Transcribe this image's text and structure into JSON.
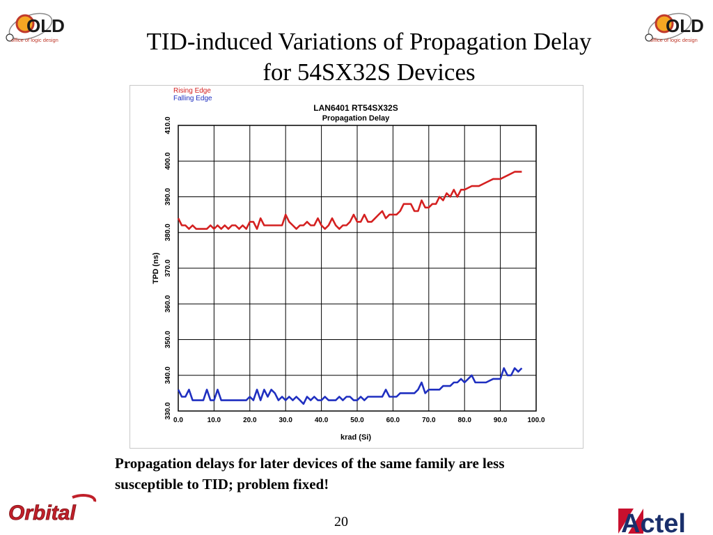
{
  "slide": {
    "title_line1": "TID-induced Variations of Propagation Delay",
    "title_line2": "for 54SX32S Devices",
    "caption_line1": "Propagation delays for later devices of the same family are less",
    "caption_line2": "susceptible to TID; problem fixed!",
    "page_number": "20"
  },
  "logos": {
    "old_text": "OLD",
    "old_subtext": "office of logic design",
    "orbital_text": "Orbital",
    "actel_text": "Actel"
  },
  "colors": {
    "rising": "#d42020",
    "falling": "#1f2fc0",
    "grid": "#000000"
  },
  "chart_data": {
    "type": "line",
    "title": "LAN6401 RT54SX32S",
    "subtitle": "Propagation Delay",
    "xlabel": "krad (Si)",
    "ylabel": "TPD (ns)",
    "xlim": [
      0,
      100
    ],
    "ylim": [
      330,
      410
    ],
    "xticks": [
      "0.0",
      "10.0",
      "20.0",
      "30.0",
      "40.0",
      "50.0",
      "60.0",
      "70.0",
      "80.0",
      "90.0",
      "100.0"
    ],
    "yticks": [
      "330.0",
      "340.0",
      "350.0",
      "360.0",
      "370.0",
      "380.0",
      "390.0",
      "400.0",
      "410.0"
    ],
    "grid": true,
    "legend_position": "top-left",
    "series": [
      {
        "name": "Rising Edge",
        "x": [
          0,
          1,
          2,
          3,
          4,
          5,
          6,
          7,
          8,
          9,
          10,
          11,
          12,
          13,
          14,
          15,
          16,
          17,
          18,
          19,
          20,
          21,
          22,
          23,
          24,
          25,
          26,
          27,
          28,
          29,
          30,
          31,
          32,
          33,
          34,
          35,
          36,
          37,
          38,
          39,
          40,
          41,
          42,
          43,
          44,
          45,
          46,
          47,
          48,
          49,
          50,
          51,
          52,
          53,
          54,
          55,
          56,
          57,
          58,
          59,
          60,
          61,
          62,
          63,
          64,
          65,
          66,
          67,
          68,
          69,
          70,
          71,
          72,
          73,
          74,
          75,
          76,
          77,
          78,
          79,
          80,
          82,
          84,
          86,
          88,
          90,
          92,
          94,
          96
        ],
        "values": [
          384,
          382,
          382,
          381,
          382,
          381,
          381,
          381,
          381,
          382,
          381,
          382,
          381,
          382,
          381,
          382,
          382,
          381,
          382,
          381,
          383,
          383,
          381,
          384,
          382,
          382,
          382,
          382,
          382,
          382,
          385,
          383,
          382,
          381,
          382,
          382,
          383,
          382,
          382,
          384,
          382,
          381,
          382,
          384,
          382,
          381,
          382,
          382,
          383,
          385,
          383,
          383,
          385,
          383,
          383,
          384,
          385,
          386,
          384,
          385,
          385,
          385,
          386,
          388,
          388,
          388,
          386,
          386,
          389,
          387,
          387,
          388,
          388,
          390,
          389,
          391,
          390,
          392,
          390,
          392,
          392,
          393,
          393,
          394,
          395,
          395,
          396,
          397,
          397
        ]
      },
      {
        "name": "Falling Edge",
        "x": [
          0,
          1,
          2,
          3,
          4,
          5,
          6,
          7,
          8,
          9,
          10,
          11,
          12,
          13,
          14,
          15,
          16,
          17,
          18,
          19,
          20,
          21,
          22,
          23,
          24,
          25,
          26,
          27,
          28,
          29,
          30,
          31,
          32,
          33,
          34,
          35,
          36,
          37,
          38,
          39,
          40,
          41,
          42,
          43,
          44,
          45,
          46,
          47,
          48,
          49,
          50,
          51,
          52,
          53,
          54,
          55,
          56,
          57,
          58,
          59,
          60,
          61,
          62,
          63,
          64,
          65,
          66,
          67,
          68,
          69,
          70,
          71,
          72,
          73,
          74,
          75,
          76,
          77,
          78,
          79,
          80,
          81,
          82,
          83,
          84,
          86,
          88,
          90,
          91,
          92,
          93,
          94,
          95,
          96
        ],
        "values": [
          336,
          334,
          334,
          336,
          333,
          333,
          333,
          333,
          336,
          333,
          333,
          336,
          333,
          333,
          333,
          333,
          333,
          333,
          333,
          333,
          334,
          333,
          336,
          333,
          336,
          334,
          336,
          335,
          333,
          334,
          333,
          334,
          333,
          334,
          333,
          332,
          334,
          333,
          334,
          333,
          333,
          334,
          333,
          333,
          333,
          334,
          333,
          334,
          334,
          333,
          333,
          334,
          333,
          334,
          334,
          334,
          334,
          334,
          336,
          334,
          334,
          334,
          335,
          335,
          335,
          335,
          335,
          336,
          338,
          335,
          336,
          336,
          336,
          336,
          337,
          337,
          337,
          338,
          338,
          339,
          338,
          339,
          340,
          338,
          338,
          338,
          339,
          339,
          342,
          340,
          340,
          342,
          341,
          342
        ]
      }
    ]
  }
}
